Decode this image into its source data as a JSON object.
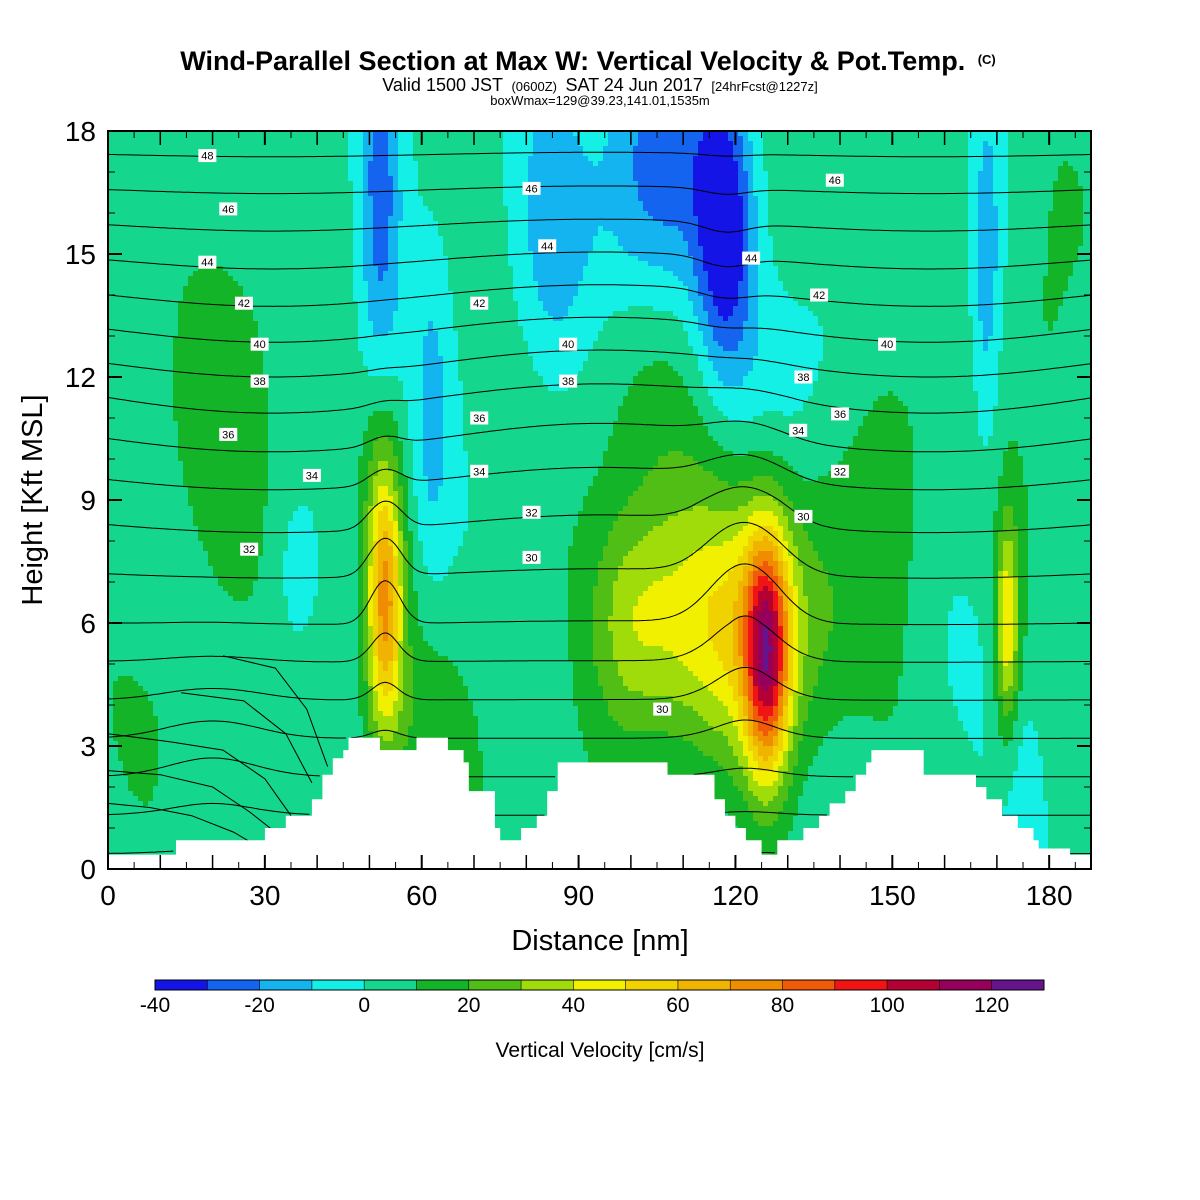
{
  "title": {
    "line1": "Wind-Parallel Section at Max W: Vertical Velocity & Pot.Temp.",
    "line1_suffix": "(C)",
    "line2_a": "Valid 1500 JST",
    "line2_b": "(0600Z)",
    "line2_c": "SAT 24 Jun 2017",
    "line2_d": "[24hrFcst@1227z]",
    "line3": "boxWmax=129@39.23,141.01,1535m"
  },
  "chart_data": {
    "type": "heatmap",
    "xlabel": "Distance [nm]",
    "ylabel": "Height [Kft MSL]",
    "xlim": [
      0,
      188
    ],
    "ylim": [
      0,
      18
    ],
    "xticks": [
      0,
      30,
      60,
      90,
      120,
      150,
      180
    ],
    "yticks": [
      0,
      3,
      6,
      9,
      12,
      15,
      18
    ],
    "colorbar": {
      "title": "Vertical Velocity [cm/s]",
      "levels": [
        -40,
        -30,
        -20,
        -10,
        0,
        10,
        20,
        30,
        40,
        50,
        60,
        70,
        80,
        90,
        100,
        110,
        120,
        130
      ],
      "colors": [
        "#1414e6",
        "#1464f0",
        "#14b4f0",
        "#14f0e6",
        "#14d68c",
        "#14b428",
        "#50be14",
        "#a0dc0a",
        "#f0f000",
        "#f0d200",
        "#f0b400",
        "#f08c00",
        "#f05a0a",
        "#f01414",
        "#b40032",
        "#96005a",
        "#64148c"
      ],
      "tick_values": [
        -40,
        -20,
        0,
        20,
        40,
        60,
        80,
        100,
        120
      ],
      "tick_labels": [
        "-40",
        "-20",
        "0",
        "20",
        "40",
        "60",
        "80",
        "100",
        "120"
      ]
    },
    "w_cells": [
      {
        "x": 53,
        "z": 6.5,
        "sx": 2.4,
        "sz": 2.2,
        "amp": 65
      },
      {
        "x": 120,
        "z": 6.0,
        "sx": 13,
        "sz": 2.4,
        "amp": 45
      },
      {
        "x": 126,
        "z": 5.2,
        "sx": 3.0,
        "sz": 2.1,
        "amp": 80
      },
      {
        "x": 100,
        "z": 6.0,
        "sx": 6.0,
        "sz": 2.0,
        "amp": 25
      },
      {
        "x": 172,
        "z": 6.0,
        "sx": 1.6,
        "sz": 1.8,
        "amp": 45
      },
      {
        "x": 24,
        "z": 12.0,
        "sx": 8.0,
        "sz": 4.0,
        "amp": 12
      },
      {
        "x": 52,
        "z": 10.0,
        "sx": 3.0,
        "sz": 2.0,
        "amp": 14
      },
      {
        "x": 108,
        "z": 11.5,
        "sx": 14,
        "sz": 2.5,
        "amp": 10
      },
      {
        "x": 150,
        "z": 10.0,
        "sx": 6.0,
        "sz": 4.0,
        "amp": 10
      },
      {
        "x": 10,
        "z": 4.0,
        "sx": 8.0,
        "sz": 2.0,
        "amp": 8
      },
      {
        "x": 62,
        "z": 3.0,
        "sx": 10,
        "sz": 2.0,
        "amp": 12
      },
      {
        "x": 180,
        "z": 13.0,
        "sx": 5.0,
        "sz": 4.0,
        "amp": 10
      },
      {
        "x": 118,
        "z": 15.5,
        "sx": 4.0,
        "sz": 2.5,
        "amp": -42
      },
      {
        "x": 105,
        "z": 17.0,
        "sx": 8.0,
        "sz": 2.5,
        "amp": -30
      },
      {
        "x": 52,
        "z": 16.0,
        "sx": 3.0,
        "sz": 3.5,
        "amp": -28
      },
      {
        "x": 85,
        "z": 15.5,
        "sx": 5.0,
        "sz": 3.0,
        "amp": -16
      },
      {
        "x": 62,
        "z": 11.0,
        "sx": 2.5,
        "sz": 3.0,
        "amp": -14
      },
      {
        "x": 168,
        "z": 14.5,
        "sx": 2.0,
        "sz": 3.0,
        "amp": -20
      },
      {
        "x": 130,
        "z": 12.5,
        "sx": 10,
        "sz": 2.0,
        "amp": -10
      },
      {
        "x": 36,
        "z": 7.2,
        "sx": 2.0,
        "sz": 1.0,
        "amp": -10
      },
      {
        "x": 176,
        "z": 2.0,
        "sx": 3.0,
        "sz": 2.0,
        "amp": -8
      }
    ],
    "terrain": [
      [
        0,
        0.35
      ],
      [
        12,
        0.35
      ],
      [
        13,
        0.7
      ],
      [
        29,
        0.7
      ],
      [
        30,
        1.0
      ],
      [
        33,
        1.0
      ],
      [
        34,
        1.3
      ],
      [
        37,
        1.3
      ],
      [
        39,
        1.7
      ],
      [
        41,
        2.3
      ],
      [
        42,
        2.3
      ],
      [
        43,
        2.7
      ],
      [
        45,
        2.9
      ],
      [
        46,
        3.2
      ],
      [
        51,
        3.2
      ],
      [
        52,
        2.9
      ],
      [
        58,
        2.9
      ],
      [
        59,
        3.2
      ],
      [
        64,
        3.2
      ],
      [
        65,
        2.9
      ],
      [
        68,
        2.6
      ],
      [
        69,
        1.9
      ],
      [
        73,
        1.9
      ],
      [
        74,
        1.0
      ],
      [
        75,
        0.7
      ],
      [
        78,
        0.7
      ],
      [
        79,
        1.0
      ],
      [
        82,
        1.3
      ],
      [
        84,
        1.9
      ],
      [
        86,
        2.6
      ],
      [
        105,
        2.6
      ],
      [
        107,
        2.3
      ],
      [
        115,
        2.3
      ],
      [
        116,
        1.7
      ],
      [
        118,
        1.3
      ],
      [
        120,
        1.0
      ],
      [
        122,
        0.7
      ],
      [
        124,
        0.7
      ],
      [
        125,
        0.35
      ],
      [
        127,
        0.35
      ],
      [
        128,
        0.7
      ],
      [
        131,
        0.7
      ],
      [
        133,
        1.0
      ],
      [
        136,
        1.3
      ],
      [
        138,
        1.6
      ],
      [
        141,
        1.9
      ],
      [
        143,
        2.3
      ],
      [
        145,
        2.6
      ],
      [
        146,
        2.9
      ],
      [
        155,
        2.9
      ],
      [
        156,
        2.3
      ],
      [
        165,
        2.3
      ],
      [
        166,
        2.0
      ],
      [
        168,
        1.7
      ],
      [
        171,
        1.3
      ],
      [
        174,
        1.0
      ],
      [
        177,
        0.7
      ],
      [
        178,
        0.5
      ],
      [
        181,
        0.5
      ],
      [
        184,
        0.35
      ],
      [
        188,
        0.35
      ]
    ],
    "theta_contours": {
      "interval": 1,
      "base_levels_C": [
        28.6,
        35.0,
        37.5,
        40.0,
        43.0,
        46.5,
        50.0
      ],
      "base_heights_kft": [
        0,
        6,
        9,
        11.5,
        14,
        17,
        20
      ]
    },
    "contour_labels": [
      {
        "text": "48",
        "x": 19,
        "z": 17.4
      },
      {
        "text": "46",
        "x": 23,
        "z": 16.1
      },
      {
        "text": "44",
        "x": 19,
        "z": 14.8
      },
      {
        "text": "42",
        "x": 26,
        "z": 13.8
      },
      {
        "text": "40",
        "x": 29,
        "z": 12.8
      },
      {
        "text": "38",
        "x": 29,
        "z": 11.9
      },
      {
        "text": "36",
        "x": 23,
        "z": 10.6
      },
      {
        "text": "34",
        "x": 39,
        "z": 9.6
      },
      {
        "text": "32",
        "x": 27,
        "z": 7.8
      },
      {
        "text": "46",
        "x": 81,
        "z": 16.6
      },
      {
        "text": "44",
        "x": 84,
        "z": 15.2
      },
      {
        "text": "42",
        "x": 71,
        "z": 13.8
      },
      {
        "text": "40",
        "x": 88,
        "z": 12.8
      },
      {
        "text": "38",
        "x": 88,
        "z": 11.9
      },
      {
        "text": "36",
        "x": 71,
        "z": 11.0
      },
      {
        "text": "34",
        "x": 71,
        "z": 9.7
      },
      {
        "text": "32",
        "x": 81,
        "z": 8.7
      },
      {
        "text": "30",
        "x": 81,
        "z": 7.6
      },
      {
        "text": "44",
        "x": 123,
        "z": 14.9
      },
      {
        "text": "46",
        "x": 139,
        "z": 16.8
      },
      {
        "text": "42",
        "x": 136,
        "z": 14.0
      },
      {
        "text": "40",
        "x": 149,
        "z": 12.8
      },
      {
        "text": "38",
        "x": 133,
        "z": 12.0
      },
      {
        "text": "36",
        "x": 140,
        "z": 11.1
      },
      {
        "text": "34",
        "x": 132,
        "z": 10.7
      },
      {
        "text": "32",
        "x": 140,
        "z": 9.7
      },
      {
        "text": "30",
        "x": 133,
        "z": 8.6
      },
      {
        "text": "30",
        "x": 106,
        "z": 3.9
      }
    ]
  }
}
